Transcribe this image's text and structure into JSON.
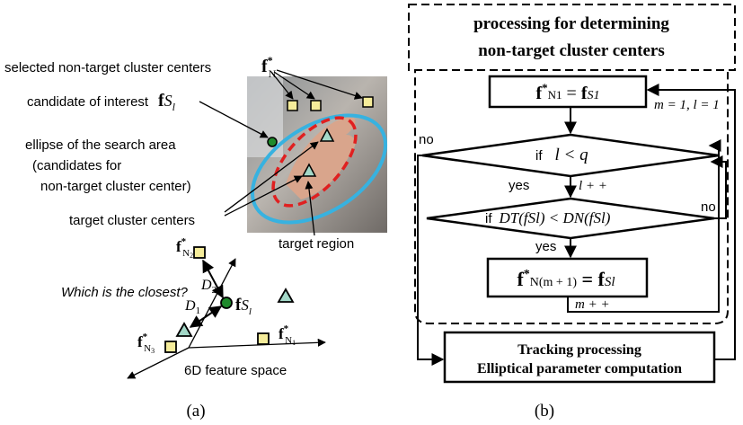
{
  "panel_a": {
    "caption": "(a)",
    "selected_label": "selected non-target cluster centers",
    "candidate_label": "candidate of interest",
    "ellipse_label": [
      "ellipse of the search area",
      "(candidates for",
      "non-target cluster center)"
    ],
    "target_centers_label": "target cluster centers",
    "target_region_label": "target region",
    "question": "Which is the closest?",
    "space_label": "6D feature space",
    "symbols": {
      "fN": {
        "base": "f",
        "sup": "*",
        "sub": "N"
      },
      "fS": {
        "base": "f",
        "sub": "S",
        "subsub": "l"
      },
      "fN1": {
        "base": "f",
        "sup": "*",
        "sub": "N",
        "subsub": "1"
      },
      "fN2": {
        "base": "f",
        "sup": "*",
        "sub": "N",
        "subsub": "2"
      },
      "fN3": {
        "base": "f",
        "sup": "*",
        "sub": "N",
        "subsub": "3"
      },
      "D1": {
        "base": "D",
        "sub": "1"
      },
      "D2": {
        "base": "D",
        "sub": "2"
      }
    }
  },
  "panel_b": {
    "caption": "(b)",
    "title": [
      "processing for determining",
      "non-target cluster centers"
    ],
    "init": {
      "lhs": "f",
      "lhs_sup": "*",
      "lhs_sub": "N1",
      "eq": " = ",
      "rhs": "f",
      "rhs_sub": "S1"
    },
    "init_note": "m = 1, l = 1",
    "cond1": {
      "if": "if",
      "expr": "l < q"
    },
    "no1": "no",
    "yes1": "yes",
    "inc_l": "l + +",
    "cond2": {
      "if": "if",
      "expr": "DT(fSl) < DN(fSl)"
    },
    "no2": "no",
    "yes2": "yes",
    "assign": {
      "lhs": "f",
      "lhs_sup": "*",
      "lhs_sub": "N(m + 1)",
      "eq": " = ",
      "rhs": "f",
      "rhs_sub": "Sl"
    },
    "inc_m": "m + +",
    "final": [
      "Tracking processing",
      "Elliptical parameter computation"
    ]
  }
}
